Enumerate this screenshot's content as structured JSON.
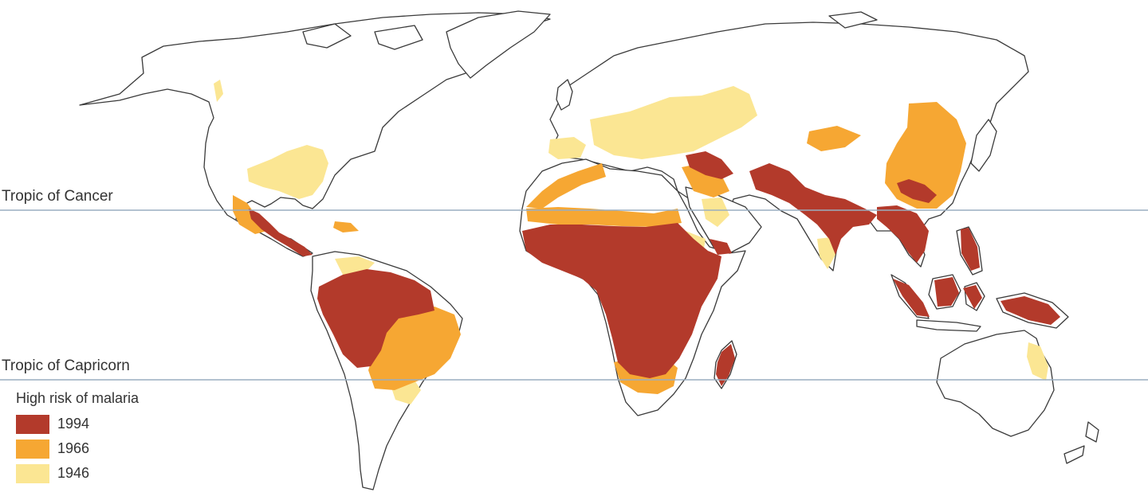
{
  "tropics": {
    "cancer_label": "Tropic of Cancer",
    "capricorn_label": "Tropic of Capricorn"
  },
  "legend": {
    "title": "High risk of malaria",
    "items": [
      {
        "label": "1994",
        "color": "#b33a2b"
      },
      {
        "label": "1966",
        "color": "#f6a733"
      },
      {
        "label": "1946",
        "color": "#fbe693"
      }
    ]
  },
  "colors": {
    "line": "#9aaec0",
    "coastline": "#3a3a3a",
    "land": "#ffffff"
  }
}
